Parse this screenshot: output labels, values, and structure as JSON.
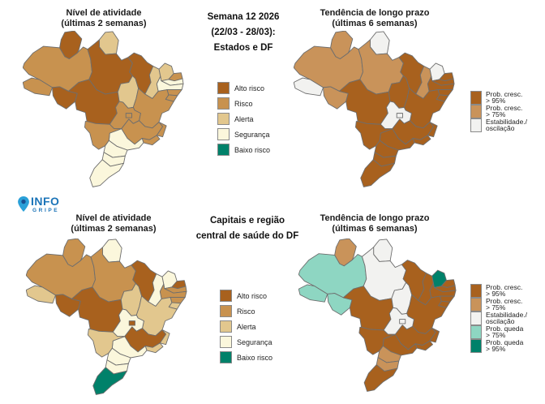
{
  "logo": {
    "top": "INFO",
    "bottom": "GRIPE"
  },
  "center_top": {
    "lines": [
      "Semana 12 2026",
      "(22/03 - 28/03):",
      "Estados e DF"
    ]
  },
  "center_bottom": {
    "lines": [
      "Capitais e região",
      "central de saúde do DF"
    ]
  },
  "chart_data": {
    "type": "choropleth",
    "figure_title": "Semana 12 2026 (22/03 - 28/03)",
    "palette": {
      "alto": "#A8611E",
      "risco": "#C8924F",
      "alerta": "#E2C78E",
      "seguranca": "#FBF7DC",
      "baixo": "#00816A",
      "cresc95": "#A8611E",
      "cresc75": "#C9935A",
      "estab": "#F2F2F0",
      "queda75": "#8ED6C2",
      "queda95": "#00816A"
    },
    "legends": {
      "activity": [
        {
          "label": "Alto risco",
          "key": "alto"
        },
        {
          "label": "Risco",
          "key": "risco"
        },
        {
          "label": "Alerta",
          "key": "alerta"
        },
        {
          "label": "Segurança",
          "key": "seguranca"
        },
        {
          "label": "Baixo risco",
          "key": "baixo"
        }
      ],
      "trend3": [
        {
          "lines": [
            "Prob. cresc.",
            "> 95%"
          ],
          "key": "cresc95"
        },
        {
          "lines": [
            "Prob. cresc.",
            "> 75%"
          ],
          "key": "cresc75"
        },
        {
          "lines": [
            "Estabilidade./",
            "oscilação"
          ],
          "key": "estab"
        }
      ],
      "trend5": [
        {
          "lines": [
            "Prob. cresc.",
            "> 95%"
          ],
          "key": "cresc95"
        },
        {
          "lines": [
            "Prob. cresc.",
            "> 75%"
          ],
          "key": "cresc75"
        },
        {
          "lines": [
            "Estabilidade./",
            "oscilação"
          ],
          "key": "estab"
        },
        {
          "lines": [
            "Prob. queda",
            "> 75%"
          ],
          "key": "queda75"
        },
        {
          "lines": [
            "Prob. queda",
            "> 95%"
          ],
          "key": "queda95"
        }
      ]
    },
    "maps": [
      {
        "id": "states-activity",
        "title_lines": [
          "Nível de atividade",
          "(últimas 2 semanas)"
        ],
        "legend": "activity",
        "states": {
          "RR": "alto",
          "AP": "alerta",
          "AM": "risco",
          "PA": "alto",
          "AC": "risco",
          "RO": "alto",
          "MT": "alto",
          "TO": "alerta",
          "MA": "alto",
          "PI": "alerta",
          "CE": "alerta",
          "RN": "risco",
          "PB": "seguranca",
          "PE": "seguranca",
          "AL": "risco",
          "SE": "risco",
          "BA": "risco",
          "GO": "risco",
          "DF": "risco",
          "MG": "risco",
          "ES": "risco",
          "RJ": "risco",
          "SP": "seguranca",
          "MS": "risco",
          "PR": "seguranca",
          "SC": "seguranca",
          "RS": "seguranca"
        }
      },
      {
        "id": "states-trend",
        "title_lines": [
          "Tendência de longo prazo",
          "(últimas 6 semanas)"
        ],
        "legend": "trend3",
        "states": {
          "RR": "cresc75",
          "AP": "estab",
          "AM": "cresc75",
          "PA": "cresc75",
          "AC": "estab",
          "RO": "cresc75",
          "MT": "cresc95",
          "TO": "cresc95",
          "MA": "cresc95",
          "PI": "cresc75",
          "CE": "estab",
          "RN": "cresc95",
          "PB": "cresc95",
          "PE": "cresc95",
          "AL": "cresc95",
          "SE": "cresc95",
          "BA": "cresc95",
          "GO": "estab",
          "DF": "estab",
          "MG": "cresc95",
          "ES": "cresc95",
          "RJ": "cresc95",
          "SP": "cresc95",
          "MS": "cresc95",
          "PR": "cresc95",
          "SC": "cresc95",
          "RS": "cresc95"
        }
      },
      {
        "id": "capitals-activity",
        "title_lines": [
          "Nível de atividade",
          "(últimas 2 semanas)"
        ],
        "legend": "activity",
        "states": {
          "RR": "risco",
          "AP": "seguranca",
          "AM": "risco",
          "PA": "risco",
          "AC": "alerta",
          "RO": "alto",
          "MT": "alto",
          "TO": "alerta",
          "MA": "alto",
          "PI": "seguranca",
          "CE": "seguranca",
          "RN": "alto",
          "PB": "risco",
          "PE": "risco",
          "AL": "risco",
          "SE": "alerta",
          "BA": "alerta",
          "GO": "seguranca",
          "DF": "alto",
          "MG": "alto",
          "ES": "alerta",
          "RJ": "alerta",
          "SP": "seguranca",
          "MS": "alerta",
          "PR": "seguranca",
          "SC": "seguranca",
          "RS": "baixo"
        }
      },
      {
        "id": "capitals-trend",
        "title_lines": [
          "Tendência de longo prazo",
          "(últimas 6 semanas)"
        ],
        "legend": "trend5",
        "states": {
          "RR": "cresc75",
          "AP": "estab",
          "AM": "queda75",
          "PA": "estab",
          "AC": "queda75",
          "RO": "queda75",
          "MT": "cresc95",
          "TO": "estab",
          "MA": "cresc95",
          "PI": "cresc95",
          "CE": "queda95",
          "RN": "cresc95",
          "PB": "cresc95",
          "PE": "cresc95",
          "AL": "cresc95",
          "SE": "cresc95",
          "BA": "cresc95",
          "GO": "estab",
          "DF": "estab",
          "MG": "cresc95",
          "ES": "cresc95",
          "RJ": "cresc95",
          "SP": "cresc95",
          "MS": "cresc95",
          "PR": "cresc75",
          "SC": "cresc75",
          "RS": "cresc95"
        }
      }
    ]
  }
}
